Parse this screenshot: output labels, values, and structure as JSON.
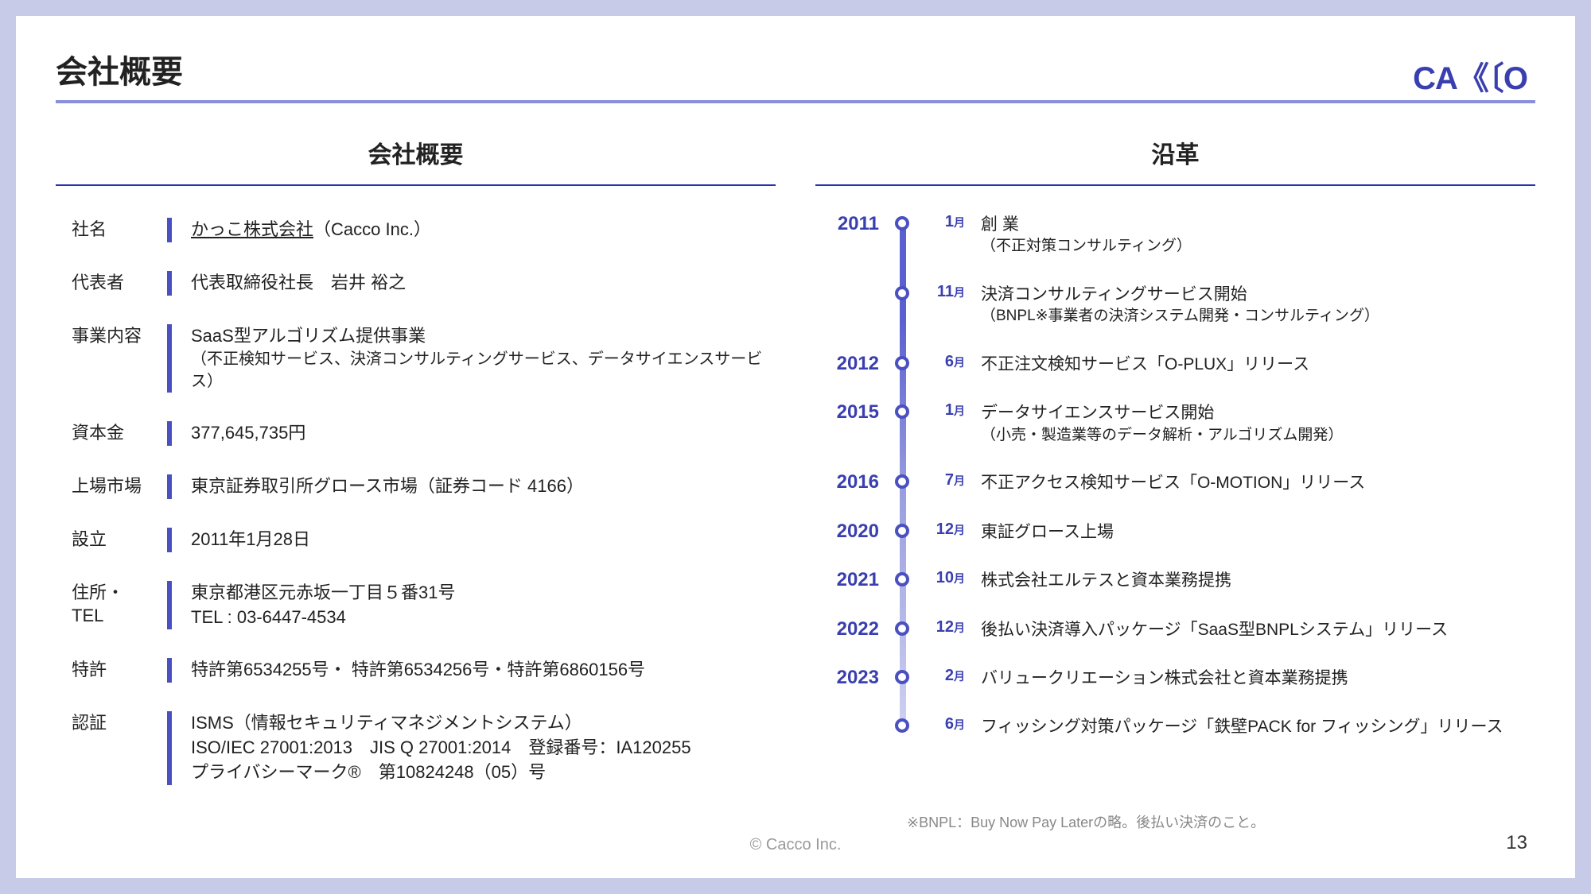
{
  "page": {
    "title": "会社概要",
    "logo": "CΑ《〔O",
    "copyright": "© Cacco Inc.",
    "number": "13",
    "footnote": "※BNPL：Buy Now Pay Laterの略。後払い決済のこと。"
  },
  "overview": {
    "heading": "会社概要",
    "rows": [
      {
        "label": "社名",
        "name": "かっこ株式会社",
        "paren": "（Cacco Inc.）"
      },
      {
        "label": "代表者",
        "value": "代表取締役社長　岩井 裕之"
      },
      {
        "label": "事業内容",
        "value": "SaaS型アルゴリズム提供事業",
        "sub": "（不正検知サービス、決済コンサルティングサービス、データサイエンスサービス）"
      },
      {
        "label": "資本金",
        "value": "377,645,735円"
      },
      {
        "label": "上場市場",
        "value": "東京証券取引所グロース市場（証券コード 4166）"
      },
      {
        "label": "設立",
        "value": "2011年1月28日"
      },
      {
        "label": "住所・\nTEL",
        "value": "東京都港区元赤坂一丁目５番31号\nTEL : 03-6447-4534"
      },
      {
        "label": "特許",
        "value": "特許第6534255号・ 特許第6534256号・特許第6860156号"
      },
      {
        "label": "認証",
        "value": "ISMS（情報セキュリティマネジメントシステム）\nISO/IEC 27001:2013　JIS Q 27001:2014　登録番号：IA120255\nプライバシーマーク®　第10824248（05）号"
      }
    ]
  },
  "history": {
    "heading": "沿革",
    "events": [
      {
        "year": "2011",
        "month": "1",
        "text": "創 業",
        "sub": "（不正対策コンサルティング）"
      },
      {
        "year": "",
        "month": "11",
        "text": "決済コンサルティングサービス開始",
        "sub": "（BNPL※事業者の決済システム開発・コンサルティング）"
      },
      {
        "year": "2012",
        "month": "6",
        "text": "不正注文検知サービス「O-PLUX」リリース"
      },
      {
        "year": "2015",
        "month": "1",
        "text": "データサイエンスサービス開始",
        "sub": "（小売・製造業等のデータ解析・アルゴリズム開発）"
      },
      {
        "year": "2016",
        "month": "7",
        "text": "不正アクセス検知サービス「O-MOTION」リリース"
      },
      {
        "year": "2020",
        "month": "12",
        "text": "東証グロース上場"
      },
      {
        "year": "2021",
        "month": "10",
        "text": "株式会社エルテスと資本業務提携"
      },
      {
        "year": "2022",
        "month": "12",
        "text": "後払い決済導入パッケージ「SaaS型BNPLシステム」リリース"
      },
      {
        "year": "2023",
        "month": "2",
        "text": "バリュークリエーション株式会社と資本業務提携"
      },
      {
        "year": "",
        "month": "6",
        "text": "フィッシング対策パッケージ「鉄壁PACK for フィッシング」リリース"
      }
    ]
  },
  "colors": {
    "accent": "#3a3fb0",
    "barline": "#4a50c0",
    "rule": "#8a90d8"
  }
}
